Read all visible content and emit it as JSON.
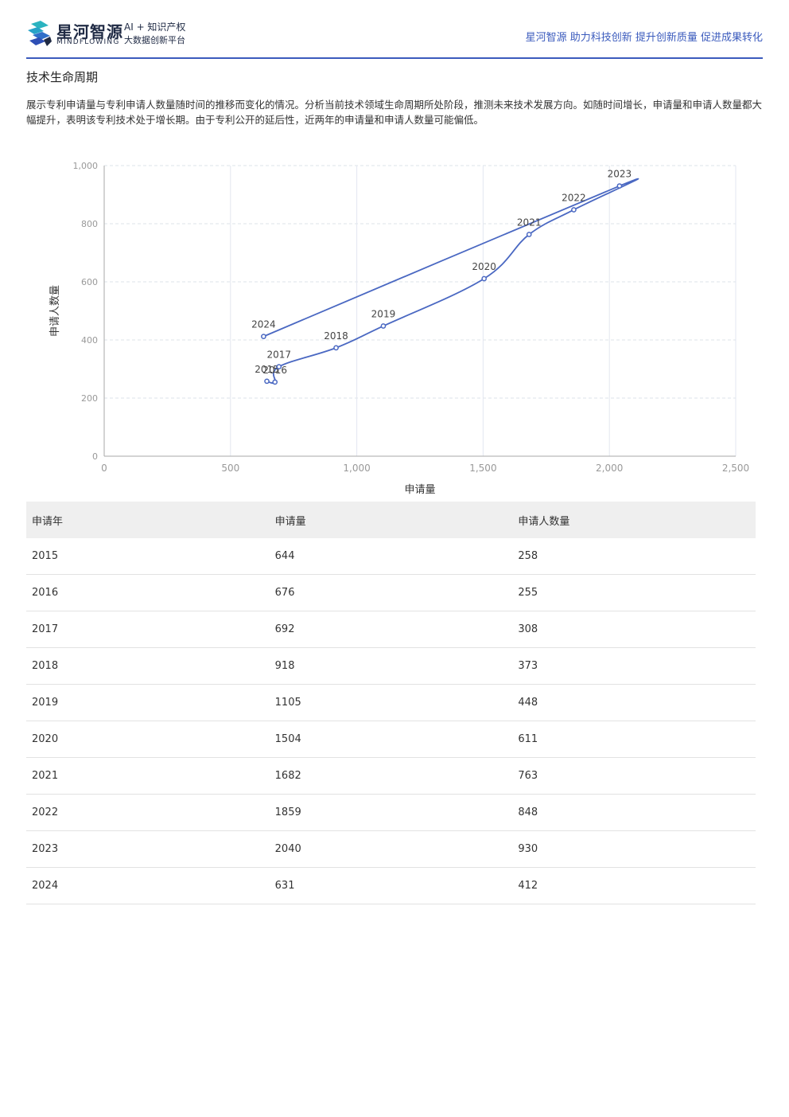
{
  "header": {
    "brand_cn": "星河智源",
    "brand_en": "MINDFLOWING",
    "slogan_line1": "AI + 知识产权",
    "slogan_line2": "大数据创新平台",
    "tagline": "星河智源 助力科技创新 提升创新质量 促进成果转化",
    "accent_color": "#3b5bbd"
  },
  "section": {
    "title": "技术生命周期",
    "description": "展示专利申请量与专利申请人数量随时间的推移而变化的情况。分析当前技术领域生命周期所处阶段，推测未来技术发展方向。如随时间增长，申请量和申请人数量都大幅提升，表明该专利技术处于增长期。由于专利公开的延后性，近两年的申请量和申请人数量可能偏低。"
  },
  "chart_data": {
    "type": "scatter",
    "xlabel": "申请量",
    "ylabel": "申请人数量",
    "xlim": [
      0,
      2500
    ],
    "ylim": [
      0,
      1000
    ],
    "xticks": [
      "0",
      "500",
      "1,000",
      "1,500",
      "2,000",
      "2,500"
    ],
    "yticks": [
      "0",
      "200",
      "400",
      "600",
      "800",
      "1,000"
    ],
    "grid": true,
    "line_color": "#4a68c2",
    "points": [
      {
        "label": "2015",
        "x": 644,
        "y": 258
      },
      {
        "label": "2016",
        "x": 676,
        "y": 255
      },
      {
        "label": "2017",
        "x": 692,
        "y": 308
      },
      {
        "label": "2018",
        "x": 918,
        "y": 373
      },
      {
        "label": "2019",
        "x": 1105,
        "y": 448
      },
      {
        "label": "2020",
        "x": 1504,
        "y": 611
      },
      {
        "label": "2021",
        "x": 1682,
        "y": 763
      },
      {
        "label": "2022",
        "x": 1859,
        "y": 848
      },
      {
        "label": "2023",
        "x": 2040,
        "y": 930
      },
      {
        "label": "2024",
        "x": 631,
        "y": 412
      }
    ]
  },
  "table": {
    "headers": [
      "申请年",
      "申请量",
      "申请人数量"
    ],
    "rows": [
      [
        "2015",
        "644",
        "258"
      ],
      [
        "2016",
        "676",
        "255"
      ],
      [
        "2017",
        "692",
        "308"
      ],
      [
        "2018",
        "918",
        "373"
      ],
      [
        "2019",
        "1105",
        "448"
      ],
      [
        "2020",
        "1504",
        "611"
      ],
      [
        "2021",
        "1682",
        "763"
      ],
      [
        "2022",
        "1859",
        "848"
      ],
      [
        "2023",
        "2040",
        "930"
      ],
      [
        "2024",
        "631",
        "412"
      ]
    ]
  }
}
